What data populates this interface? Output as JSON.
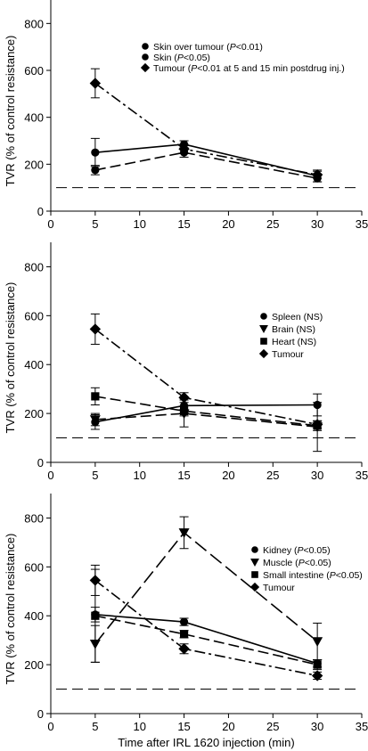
{
  "xaxis_label": "Time after IRL 1620 injection (min)",
  "chart_data": [
    {
      "type": "line",
      "xlim": [
        0,
        35
      ],
      "ylim": [
        0,
        900
      ],
      "xticks": [
        0,
        5,
        10,
        15,
        20,
        25,
        30,
        35
      ],
      "yticks": [
        0,
        200,
        400,
        600,
        800
      ],
      "ylabel": "TVR (% of control resistance)",
      "xlabel": "",
      "grid": false,
      "reference_line": 100,
      "legend_position": "top-right",
      "series": [
        {
          "name": "Skin over tumour (",
          "name_italic": "P",
          "name_suffix": "<0.01)",
          "marker": "circle",
          "dash": "solid",
          "x": [
            5,
            15,
            30
          ],
          "y": [
            250,
            285,
            150
          ],
          "err": [
            60,
            15,
            25
          ]
        },
        {
          "name": "Skin (",
          "name_italic": "P",
          "name_suffix": "<0.05)",
          "marker": "circle",
          "dash": "dashed",
          "x": [
            5,
            15,
            30
          ],
          "y": [
            175,
            250,
            140
          ],
          "err": [
            20,
            20,
            15
          ]
        },
        {
          "name": "Tumour (",
          "name_italic": "P",
          "name_suffix": "<0.01 at 5 and 15 min postdrug inj.)",
          "marker": "diamond",
          "dash": "dashdot",
          "x": [
            5,
            15,
            30
          ],
          "y": [
            545,
            265,
            155
          ],
          "err": [
            62,
            20,
            15
          ]
        }
      ]
    },
    {
      "type": "line",
      "xlim": [
        0,
        35
      ],
      "ylim": [
        0,
        900
      ],
      "xticks": [
        0,
        5,
        10,
        15,
        20,
        25,
        30,
        35
      ],
      "yticks": [
        0,
        200,
        400,
        600,
        800
      ],
      "ylabel": "TVR (% of control resistance)",
      "xlabel": "",
      "grid": false,
      "reference_line": 100,
      "legend_position": "right",
      "series": [
        {
          "name": "Spleen (NS)",
          "name_italic": "",
          "name_suffix": "",
          "marker": "circle",
          "dash": "solid",
          "x": [
            5,
            15,
            30
          ],
          "y": [
            165,
            232,
            235
          ],
          "err": [
            30,
            30,
            45
          ]
        },
        {
          "name": "Brain (NS)",
          "name_italic": "",
          "name_suffix": "",
          "marker": "triangle-down",
          "dash": "dashed",
          "x": [
            5,
            15,
            30
          ],
          "y": [
            175,
            200,
            145
          ],
          "err": [
            25,
            55,
            100
          ]
        },
        {
          "name": "Heart (NS)",
          "name_italic": "",
          "name_suffix": "",
          "marker": "square",
          "dash": "dashed",
          "x": [
            5,
            15,
            30
          ],
          "y": [
            270,
            210,
            150
          ],
          "err": [
            35,
            20,
            20
          ]
        },
        {
          "name": "Tumour",
          "name_italic": "",
          "name_suffix": "",
          "marker": "diamond",
          "dash": "dashdot",
          "x": [
            5,
            15,
            30
          ],
          "y": [
            545,
            265,
            155
          ],
          "err": [
            62,
            20,
            15
          ]
        }
      ]
    },
    {
      "type": "line",
      "xlim": [
        0,
        35
      ],
      "ylim": [
        0,
        900
      ],
      "xticks": [
        0,
        5,
        10,
        15,
        20,
        25,
        30,
        35
      ],
      "yticks": [
        0,
        200,
        400,
        600,
        800
      ],
      "ylabel": "TVR (% of control resistance)",
      "xlabel": "Time after IRL 1620 injection (min)",
      "grid": false,
      "reference_line": 100,
      "legend_position": "right",
      "series": [
        {
          "name": "Kidney (",
          "name_italic": "P",
          "name_suffix": "<0.05)",
          "marker": "circle",
          "dash": "solid",
          "x": [
            5,
            15,
            30
          ],
          "y": [
            405,
            375,
            205
          ],
          "err": [
            30,
            15,
            15
          ]
        },
        {
          "name": "Muscle (",
          "name_italic": "P",
          "name_suffix": "<0.05)",
          "marker": "triangle-down",
          "dash": "longdash",
          "x": [
            5,
            15,
            30
          ],
          "y": [
            285,
            740,
            295
          ],
          "err": [
            75,
            65,
            75
          ]
        },
        {
          "name": "Small intestine (",
          "name_italic": "P",
          "name_suffix": "<0.05)",
          "marker": "square",
          "dash": "dashed",
          "x": [
            5,
            15,
            30
          ],
          "y": [
            400,
            325,
            200
          ],
          "err": [
            190,
            15,
            20
          ]
        },
        {
          "name": "Tumour",
          "name_italic": "",
          "name_suffix": "",
          "marker": "diamond",
          "dash": "dashdot",
          "x": [
            5,
            15,
            30
          ],
          "y": [
            545,
            265,
            155
          ],
          "err": [
            62,
            20,
            15
          ]
        }
      ]
    }
  ]
}
